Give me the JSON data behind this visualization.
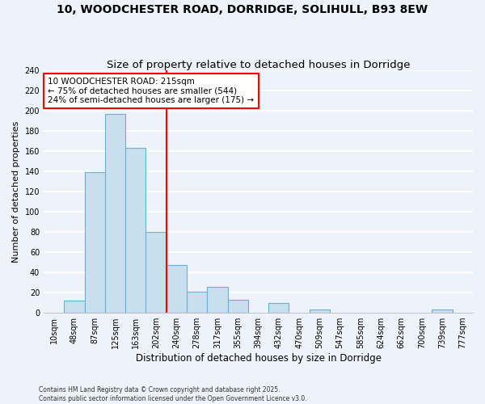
{
  "title": "10, WOODCHESTER ROAD, DORRIDGE, SOLIHULL, B93 8EW",
  "subtitle": "Size of property relative to detached houses in Dorridge",
  "xlabel": "Distribution of detached houses by size in Dorridge",
  "ylabel": "Number of detached properties",
  "bar_labels": [
    "10sqm",
    "48sqm",
    "87sqm",
    "125sqm",
    "163sqm",
    "202sqm",
    "240sqm",
    "278sqm",
    "317sqm",
    "355sqm",
    "394sqm",
    "432sqm",
    "470sqm",
    "509sqm",
    "547sqm",
    "585sqm",
    "624sqm",
    "662sqm",
    "700sqm",
    "739sqm",
    "777sqm"
  ],
  "bar_values": [
    0,
    12,
    139,
    197,
    163,
    80,
    47,
    21,
    26,
    13,
    0,
    10,
    0,
    3,
    0,
    0,
    0,
    0,
    0,
    3,
    0
  ],
  "bar_color": "#c8dff0",
  "bar_edge_color": "#6aafd6",
  "annotation_box_text": "10 WOODCHESTER ROAD: 215sqm\n← 75% of detached houses are smaller (544)\n24% of semi-detached houses are larger (175) →",
  "annotation_box_color": "white",
  "annotation_box_edge_color": "red",
  "vline_x_index": 5,
  "vline_color": "red",
  "ylim": [
    0,
    240
  ],
  "yticks": [
    0,
    20,
    40,
    60,
    80,
    100,
    120,
    140,
    160,
    180,
    200,
    220,
    240
  ],
  "background_color": "#eef2fa",
  "grid_color": "white",
  "footer_line1": "Contains HM Land Registry data © Crown copyright and database right 2025.",
  "footer_line2": "Contains public sector information licensed under the Open Government Licence v3.0.",
  "title_fontsize": 10,
  "subtitle_fontsize": 9.5,
  "xlabel_fontsize": 8.5,
  "ylabel_fontsize": 8,
  "tick_fontsize": 7,
  "annot_fontsize": 7.5
}
